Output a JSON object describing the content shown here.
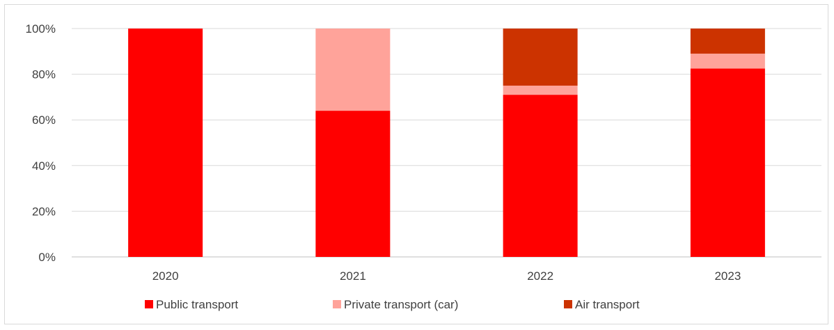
{
  "chart_data": {
    "type": "bar",
    "stacked": true,
    "percent_stacked": true,
    "categories": [
      "2020",
      "2021",
      "2022",
      "2023"
    ],
    "series": [
      {
        "name": "Public transport",
        "color": "#ff0000",
        "values": [
          100,
          64,
          71,
          82.5
        ]
      },
      {
        "name": "Private transport (car)",
        "color": "#ffa39a",
        "values": [
          0,
          36,
          4,
          6.5
        ]
      },
      {
        "name": "Air transport",
        "color": "#cc3300",
        "values": [
          0,
          0,
          25,
          11
        ]
      }
    ],
    "yticks": [
      "0%",
      "20%",
      "40%",
      "60%",
      "80%",
      "100%"
    ],
    "ylim": [
      0,
      100
    ],
    "grid": true,
    "legend_position": "bottom"
  }
}
